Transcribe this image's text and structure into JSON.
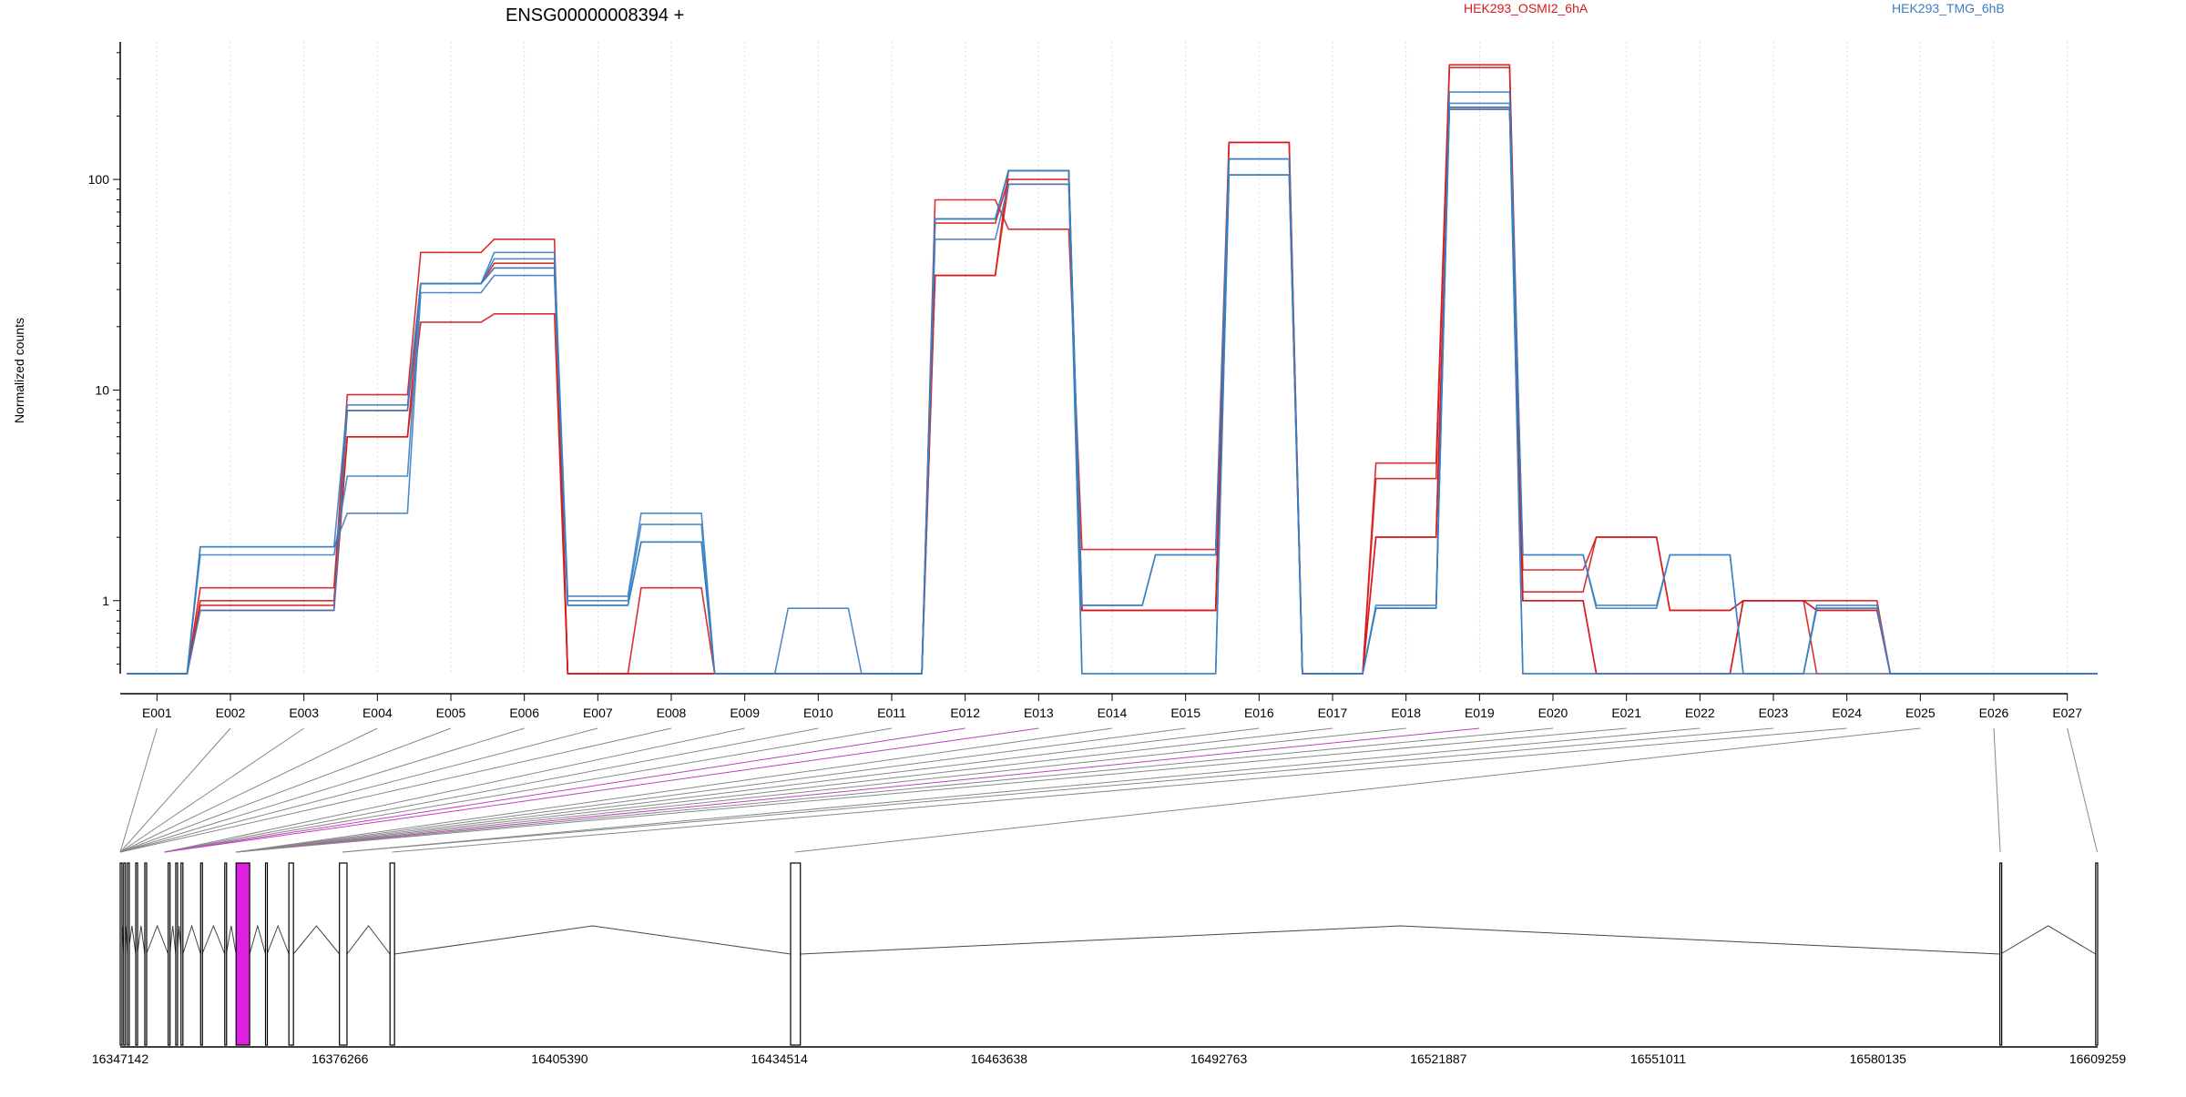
{
  "chart_data": {
    "type": "line",
    "title": "ENSG00000008394 +",
    "ylabel": "Normalized counts",
    "y_scale": "log",
    "ylim": [
      0.45,
      450
    ],
    "y_ticks": [
      {
        "value": 1,
        "label": "1"
      },
      {
        "value": 10,
        "label": "10"
      },
      {
        "value": 100,
        "label": "100"
      }
    ],
    "legend": [
      {
        "name": "HEK293_OSMI2_6hA",
        "color": "#d7191c"
      },
      {
        "name": "HEK293_TMG_6hB",
        "color": "#3a7fc1"
      }
    ],
    "categories": [
      "E001",
      "E002",
      "E003",
      "E004",
      "E005",
      "E006",
      "E007",
      "E008",
      "E009",
      "E010",
      "E011",
      "E012",
      "E013",
      "E014",
      "E015",
      "E016",
      "E017",
      "E018",
      "E019",
      "E020",
      "E021",
      "E022",
      "E023",
      "E024",
      "E025",
      "E026",
      "E027"
    ],
    "series": [
      {
        "group": "HEK293_OSMI2_6hA",
        "color": "#d7191c",
        "values": [
          0.45,
          1.15,
          1.15,
          9.5,
          45,
          52,
          0.45,
          1.15,
          0.45,
          0.45,
          0.45,
          80,
          58,
          1.75,
          1.75,
          150,
          0.45,
          4.5,
          350,
          1.4,
          2.0,
          0.9,
          1.0,
          0.45,
          0.45,
          0.45,
          0.45
        ]
      },
      {
        "group": "HEK293_OSMI2_6hA",
        "color": "#d7191c",
        "values": [
          0.45,
          1.0,
          1.0,
          8.0,
          32,
          40,
          0.45,
          0.45,
          0.45,
          0.45,
          0.45,
          62,
          100,
          0.9,
          0.9,
          150,
          0.45,
          3.8,
          340,
          1.1,
          2.0,
          0.9,
          1.0,
          0.9,
          0.45,
          0.45,
          0.45
        ]
      },
      {
        "group": "HEK293_OSMI2_6hA",
        "color": "#d7191c",
        "values": [
          0.45,
          0.95,
          0.95,
          6.0,
          32,
          38,
          0.45,
          0.45,
          0.45,
          0.45,
          0.45,
          35,
          95,
          0.9,
          0.9,
          125,
          0.45,
          2.0,
          220,
          1.0,
          0.45,
          0.45,
          1.0,
          1.0,
          0.45,
          0.45,
          0.45
        ]
      },
      {
        "group": "HEK293_OSMI2_6hA",
        "color": "#d7191c",
        "values": [
          0.45,
          0.9,
          0.9,
          6.0,
          21,
          23,
          0.45,
          0.45,
          0.45,
          0.45,
          0.45,
          35,
          110,
          0.9,
          0.9,
          105,
          0.45,
          2.0,
          215,
          1.0,
          0.45,
          0.45,
          1.0,
          0.9,
          0.45,
          0.45,
          0.45
        ]
      },
      {
        "group": "HEK293_TMG_6hB",
        "color": "#3a7fc1",
        "values": [
          0.45,
          1.8,
          1.8,
          8.5,
          32,
          45,
          1.05,
          2.6,
          0.45,
          0.92,
          0.45,
          65,
          110,
          0.95,
          1.65,
          125,
          0.45,
          0.95,
          260,
          1.65,
          0.95,
          1.65,
          0.45,
          0.95,
          0.45,
          0.45,
          0.45
        ]
      },
      {
        "group": "HEK293_TMG_6hB",
        "color": "#3a7fc1",
        "values": [
          0.45,
          1.65,
          1.65,
          3.9,
          32,
          42,
          1.0,
          2.3,
          0.45,
          0.45,
          0.45,
          65,
          110,
          0.95,
          1.65,
          125,
          0.45,
          0.92,
          230,
          1.65,
          0.92,
          1.65,
          0.45,
          0.92,
          0.45,
          0.45,
          0.45
        ]
      },
      {
        "group": "HEK293_TMG_6hB",
        "color": "#3a7fc1",
        "values": [
          0.45,
          1.8,
          1.8,
          2.6,
          29,
          35,
          0.95,
          1.9,
          0.45,
          0.45,
          0.45,
          52,
          95,
          0.45,
          0.45,
          105,
          0.45,
          0.92,
          215,
          0.45,
          0.45,
          0.45,
          0.45,
          0.45,
          0.45,
          0.45,
          0.45
        ]
      },
      {
        "group": "HEK293_TMG_6hB",
        "color": "#3a7fc1",
        "values": [
          0.45,
          0.9,
          0.9,
          8.0,
          32,
          38,
          0.95,
          1.9,
          0.45,
          0.45,
          0.45,
          65,
          110,
          0.45,
          0.45,
          105,
          0.45,
          0.92,
          220,
          0.45,
          0.45,
          0.45,
          0.45,
          0.92,
          0.45,
          0.45,
          0.45
        ]
      }
    ],
    "gene_model": {
      "coord_range": [
        16347142,
        16609259
      ],
      "coord_ticks": [
        "16347142",
        "16376266",
        "16405390",
        "16434514",
        "16463638",
        "16492763",
        "16521887",
        "16551011",
        "16580135",
        "16609259"
      ],
      "exons": [
        {
          "start": 16347142,
          "end": 16347242,
          "highlight": false
        },
        {
          "start": 16347600,
          "end": 16347680,
          "highlight": false
        },
        {
          "start": 16348100,
          "end": 16348180,
          "highlight": false
        },
        {
          "start": 16349200,
          "end": 16349400,
          "highlight": false
        },
        {
          "start": 16350400,
          "end": 16350600,
          "highlight": false
        },
        {
          "start": 16353500,
          "end": 16353700,
          "highlight": false
        },
        {
          "start": 16354500,
          "end": 16354700,
          "highlight": false
        },
        {
          "start": 16355200,
          "end": 16355450,
          "highlight": false
        },
        {
          "start": 16357800,
          "end": 16358000,
          "highlight": false
        },
        {
          "start": 16361000,
          "end": 16361200,
          "highlight": false
        },
        {
          "start": 16362500,
          "end": 16364300,
          "highlight": true
        },
        {
          "start": 16366400,
          "end": 16366600,
          "highlight": false
        },
        {
          "start": 16369500,
          "end": 16370100,
          "highlight": false
        },
        {
          "start": 16376200,
          "end": 16377200,
          "highlight": false
        },
        {
          "start": 16382900,
          "end": 16383500,
          "highlight": false
        },
        {
          "start": 16436000,
          "end": 16437300,
          "highlight": false
        },
        {
          "start": 16596300,
          "end": 16596400,
          "highlight": false
        },
        {
          "start": 16609000,
          "end": 16609259,
          "highlight": false
        }
      ],
      "exon_links": [
        {
          "bin": "E001",
          "gene_pos": 16347142,
          "highlight": false
        },
        {
          "bin": "E002",
          "gene_pos": 16347142,
          "highlight": false
        },
        {
          "bin": "E003",
          "gene_pos": 16347142,
          "highlight": false
        },
        {
          "bin": "E004",
          "gene_pos": 16347142,
          "highlight": false
        },
        {
          "bin": "E005",
          "gene_pos": 16347142,
          "highlight": false
        },
        {
          "bin": "E006",
          "gene_pos": 16347142,
          "highlight": false
        },
        {
          "bin": "E007",
          "gene_pos": 16347142,
          "highlight": false
        },
        {
          "bin": "E008",
          "gene_pos": 16347142,
          "highlight": false
        },
        {
          "bin": "E009",
          "gene_pos": 16353000,
          "highlight": false
        },
        {
          "bin": "E010",
          "gene_pos": 16353000,
          "highlight": false
        },
        {
          "bin": "E011",
          "gene_pos": 16353000,
          "highlight": false
        },
        {
          "bin": "E012",
          "gene_pos": 16353000,
          "highlight": true
        },
        {
          "bin": "E013",
          "gene_pos": 16353000,
          "highlight": true
        },
        {
          "bin": "E014",
          "gene_pos": 16362500,
          "highlight": false
        },
        {
          "bin": "E015",
          "gene_pos": 16362500,
          "highlight": false
        },
        {
          "bin": "E016",
          "gene_pos": 16362500,
          "highlight": false
        },
        {
          "bin": "E017",
          "gene_pos": 16362500,
          "highlight": false
        },
        {
          "bin": "E018",
          "gene_pos": 16362500,
          "highlight": false
        },
        {
          "bin": "E019",
          "gene_pos": 16362500,
          "highlight": true
        },
        {
          "bin": "E020",
          "gene_pos": 16362500,
          "highlight": false
        },
        {
          "bin": "E021",
          "gene_pos": 16362500,
          "highlight": false
        },
        {
          "bin": "E022",
          "gene_pos": 16376600,
          "highlight": false
        },
        {
          "bin": "E023",
          "gene_pos": 16376600,
          "highlight": false
        },
        {
          "bin": "E024",
          "gene_pos": 16383200,
          "highlight": false
        },
        {
          "bin": "E025",
          "gene_pos": 16436600,
          "highlight": false
        },
        {
          "bin": "E026",
          "gene_pos": 16596350,
          "highlight": false
        },
        {
          "bin": "E027",
          "gene_pos": 16609200,
          "highlight": false
        }
      ]
    }
  }
}
